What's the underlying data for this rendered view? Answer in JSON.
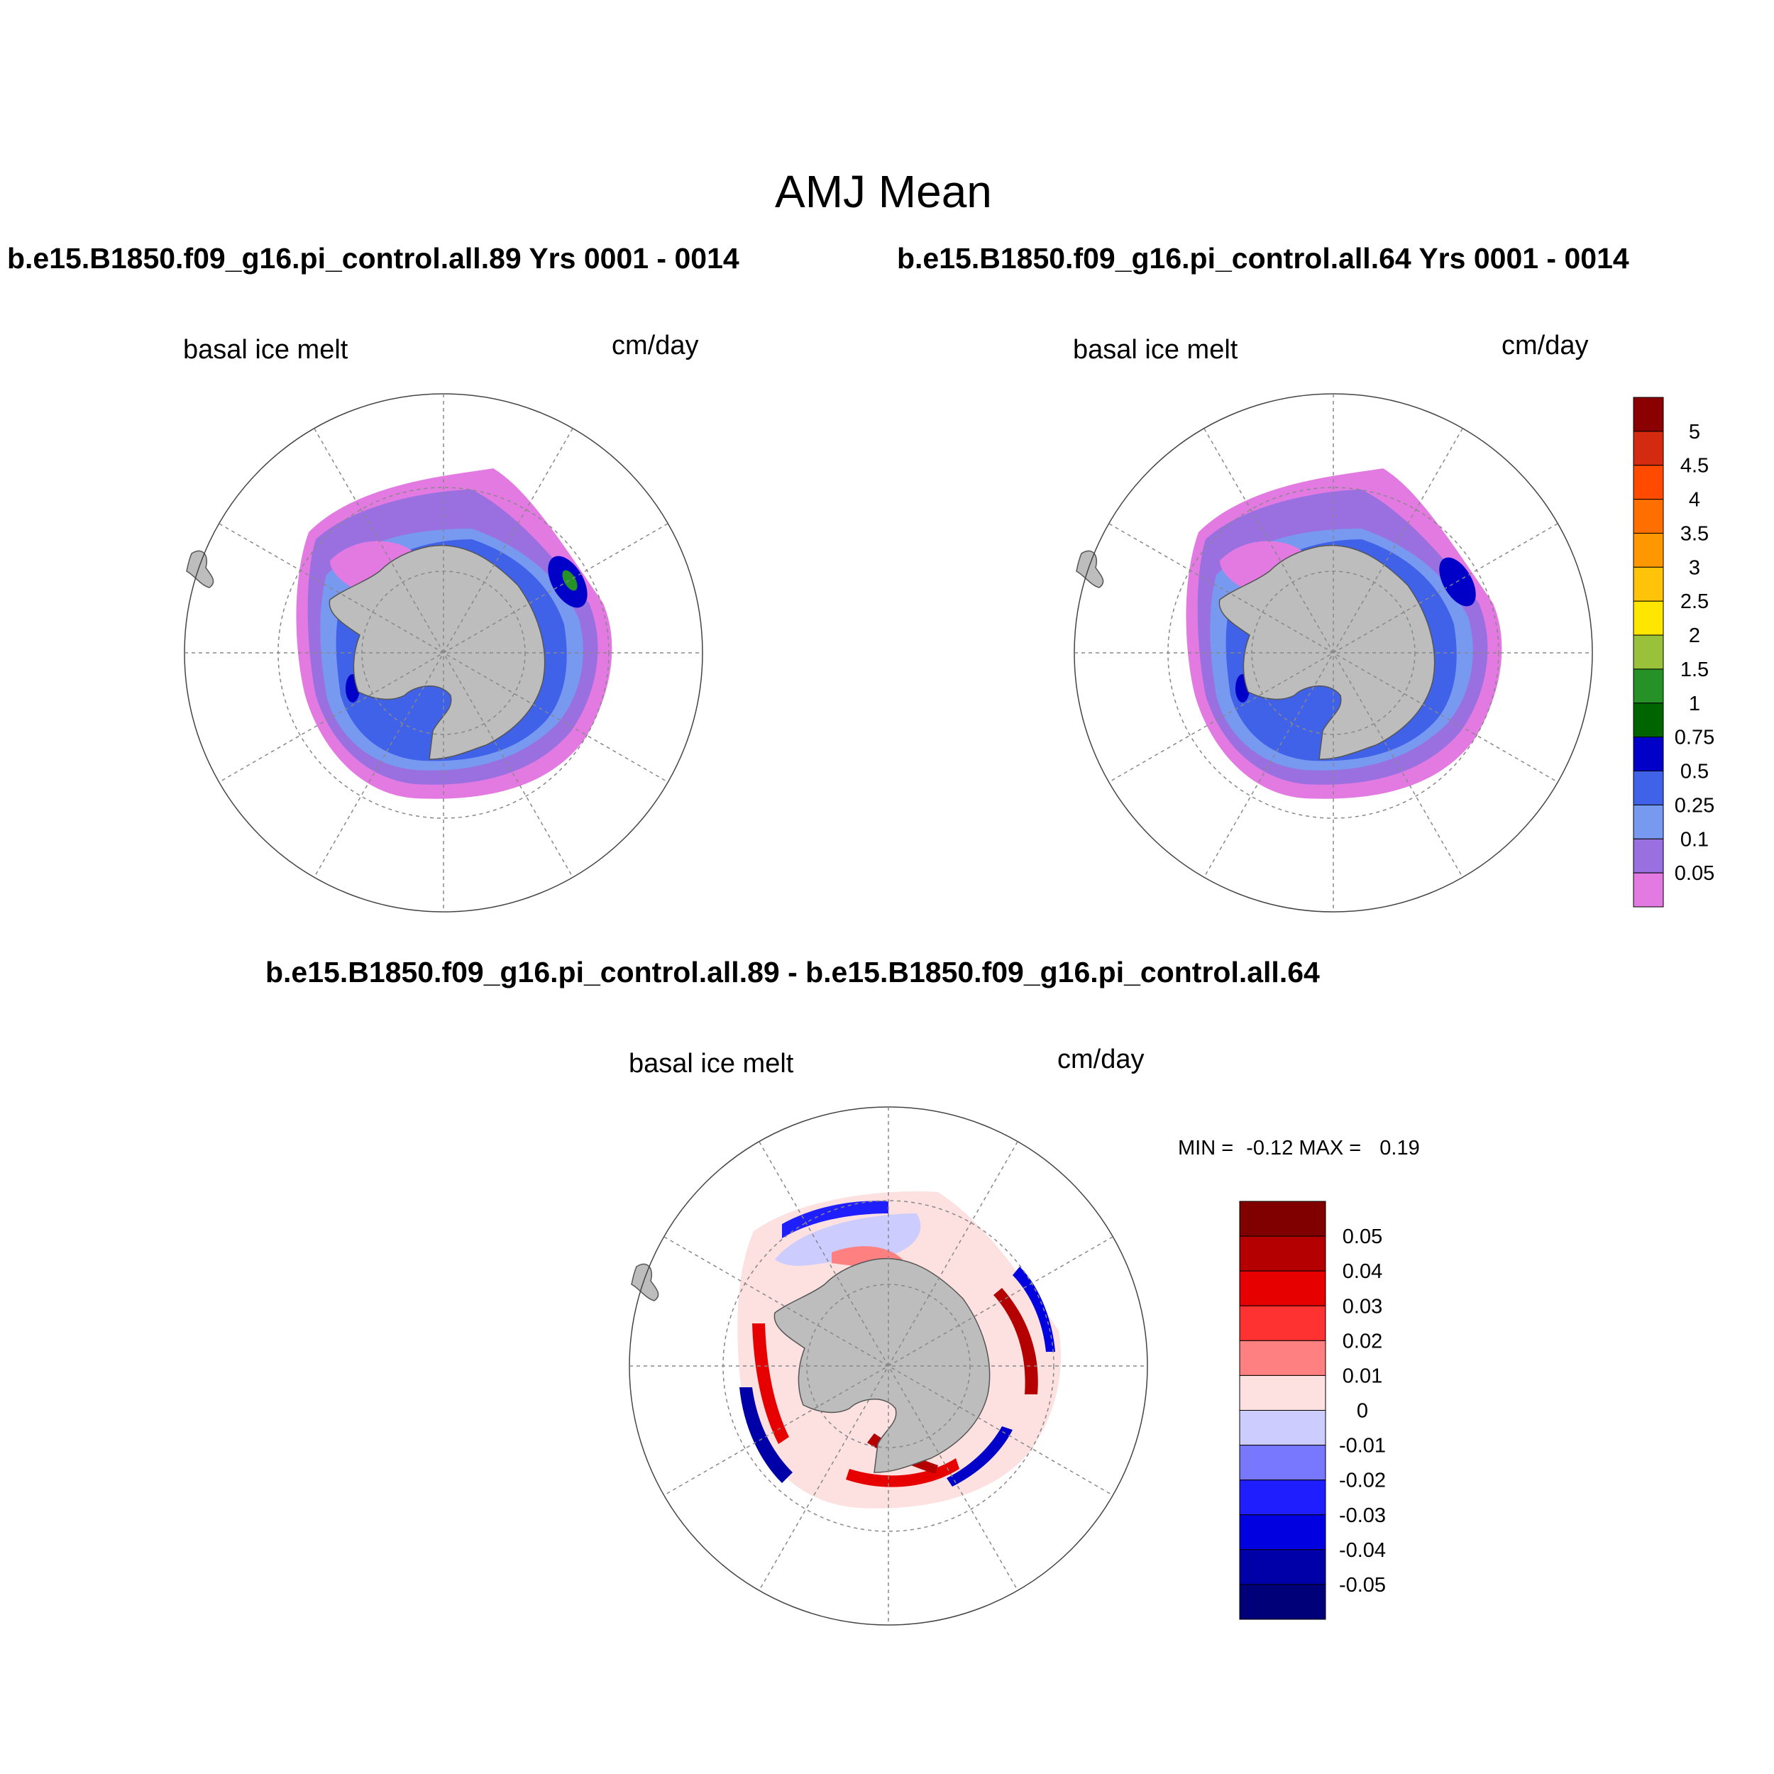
{
  "title": "AMJ Mean",
  "panels": [
    {
      "id": "case1",
      "title": "b.e15.B1850.f09_g16.pi_control.all.89  Yrs 0001 - 0014",
      "field": "basal ice melt",
      "units": "cm/day"
    },
    {
      "id": "case2",
      "title": "b.e15.B1850.f09_g16.pi_control.all.64  Yrs 0001 - 0014",
      "field": "basal ice melt",
      "units": "cm/day"
    },
    {
      "id": "diff",
      "title": "b.e15.B1850.f09_g16.pi_control.all.89 - b.e15.B1850.f09_g16.pi_control.all.64",
      "field": "basal ice melt",
      "units": "cm/day",
      "min_label": "MIN =",
      "min_value": "-0.12",
      "max_label": "MAX =",
      "max_value": "0.19"
    }
  ],
  "colorbar_main": {
    "labels": [
      "5",
      "4.5",
      "4",
      "3.5",
      "3",
      "2.5",
      "2",
      "1.5",
      "1",
      "0.75",
      "0.5",
      "0.25",
      "0.1",
      "0.05"
    ],
    "colors": [
      "#8b0000",
      "#d42a10",
      "#ff4a00",
      "#ff6f00",
      "#ff9800",
      "#ffc40a",
      "#ffe600",
      "#99c23a",
      "#259126",
      "#006400",
      "#0000c8",
      "#3f62e8",
      "#7799f0",
      "#9a70e0",
      "#e27ae2"
    ]
  },
  "colorbar_diff": {
    "labels": [
      "0.05",
      "0.04",
      "0.03",
      "0.02",
      "0.01",
      "0",
      "-0.01",
      "-0.02",
      "-0.03",
      "-0.04",
      "-0.05"
    ],
    "colors": [
      "#800000",
      "#b40000",
      "#e60000",
      "#ff3232",
      "#ff8080",
      "#fde0e0",
      "#ccccff",
      "#7878ff",
      "#1e1eff",
      "#0000e0",
      "#0000a8",
      "#000078"
    ]
  },
  "map_colors": {
    "land": "#bdbdbd",
    "outer_pink": "#e27ae2",
    "purple": "#9a70e0",
    "light_blue": "#7799f0",
    "blue": "#3f62e8",
    "dark_blue": "#0000c8",
    "green": "#259126"
  }
}
